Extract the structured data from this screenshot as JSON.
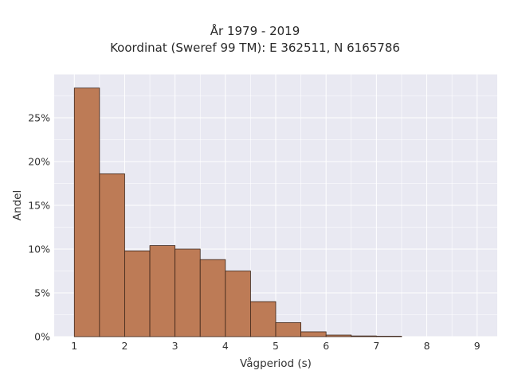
{
  "chart_data": {
    "type": "bar",
    "title": "År 1979 - 2019",
    "subtitle": "Koordinat (Sweref 99 TM): E 362511, N 6165786",
    "xlabel": "Vågperiod (s)",
    "ylabel": "Andel",
    "bins": [
      {
        "x0": 1.0,
        "x1": 1.5,
        "value": 28.4
      },
      {
        "x0": 1.5,
        "x1": 2.0,
        "value": 18.6
      },
      {
        "x0": 2.0,
        "x1": 2.5,
        "value": 9.8
      },
      {
        "x0": 2.5,
        "x1": 3.0,
        "value": 10.4
      },
      {
        "x0": 3.0,
        "x1": 3.5,
        "value": 10.0
      },
      {
        "x0": 3.5,
        "x1": 4.0,
        "value": 8.8
      },
      {
        "x0": 4.0,
        "x1": 4.5,
        "value": 7.5
      },
      {
        "x0": 4.5,
        "x1": 5.0,
        "value": 4.0
      },
      {
        "x0": 5.0,
        "x1": 5.5,
        "value": 1.6
      },
      {
        "x0": 5.5,
        "x1": 6.0,
        "value": 0.55
      },
      {
        "x0": 6.0,
        "x1": 6.5,
        "value": 0.18
      },
      {
        "x0": 6.5,
        "x1": 7.0,
        "value": 0.08
      },
      {
        "x0": 7.0,
        "x1": 7.5,
        "value": 0.05
      }
    ],
    "x_ticks": [
      "1",
      "2",
      "3",
      "4",
      "5",
      "6",
      "7",
      "8",
      "9"
    ],
    "y_ticks": [
      "0%",
      "5%",
      "10%",
      "15%",
      "20%",
      "25%"
    ],
    "xlim": [
      0.6,
      9.4
    ],
    "ylim": [
      0,
      30
    ],
    "grid": true,
    "legend": "none",
    "colors": {
      "bar_fill": "#bd7b56",
      "bar_stroke": "#3b2418",
      "plot_bg": "#e9e9f2",
      "grid": "#ffffff"
    }
  }
}
